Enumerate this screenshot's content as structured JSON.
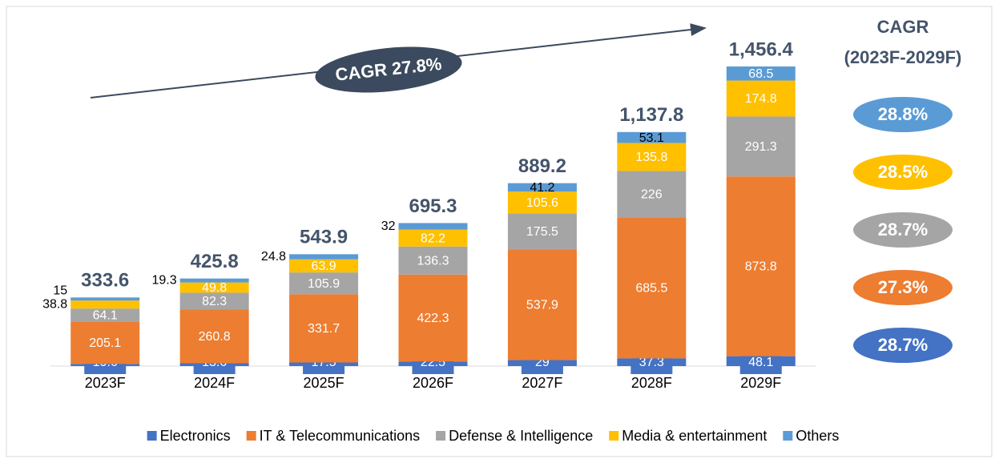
{
  "chart_data": {
    "type": "stacked_bar",
    "annotation": "CAGR 27.8%",
    "categories": [
      "2023F",
      "2024F",
      "2025F",
      "2026F",
      "2027F",
      "2028F",
      "2029F"
    ],
    "series": [
      {
        "name": "Electronics",
        "color": "#4472c4",
        "values": [
          10.6,
          13.6,
          17.5,
          22.5,
          29,
          37.3,
          48.1
        ]
      },
      {
        "name": "IT & Telecommunications",
        "color": "#ed7d31",
        "values": [
          205.1,
          260.8,
          331.7,
          422.3,
          537.9,
          685.5,
          873.8
        ]
      },
      {
        "name": "Defense & Intelligence",
        "color": "#a5a5a5",
        "values": [
          64.1,
          82.3,
          105.9,
          136.3,
          175.5,
          226,
          291.3
        ]
      },
      {
        "name": "Media & entertainment",
        "color": "#ffc000",
        "values": [
          38.8,
          49.8,
          63.9,
          82.2,
          105.6,
          135.8,
          174.8
        ]
      },
      {
        "name": "Others",
        "color": "#5b9bd5",
        "values": [
          15,
          19.3,
          24.8,
          32,
          41.2,
          53.1,
          68.5
        ]
      }
    ],
    "totals": {
      "values": [
        333.6,
        425.8,
        543.9,
        695.3,
        889.2,
        1137.8,
        1456.4
      ],
      "value_labels": [
        "333.6",
        "425.8",
        "543.9",
        "695.3",
        "889.2",
        "1,137.8",
        "1,456.4"
      ]
    },
    "cagr": {
      "title": [
        "CAGR",
        "(2023F-2029F)"
      ],
      "values": [
        28.7,
        27.3,
        28.7,
        28.5,
        28.8
      ],
      "value_labels": [
        "28.7%",
        "27.3%",
        "28.7%",
        "28.5%",
        "28.8%"
      ]
    },
    "legend": "bottom"
  }
}
